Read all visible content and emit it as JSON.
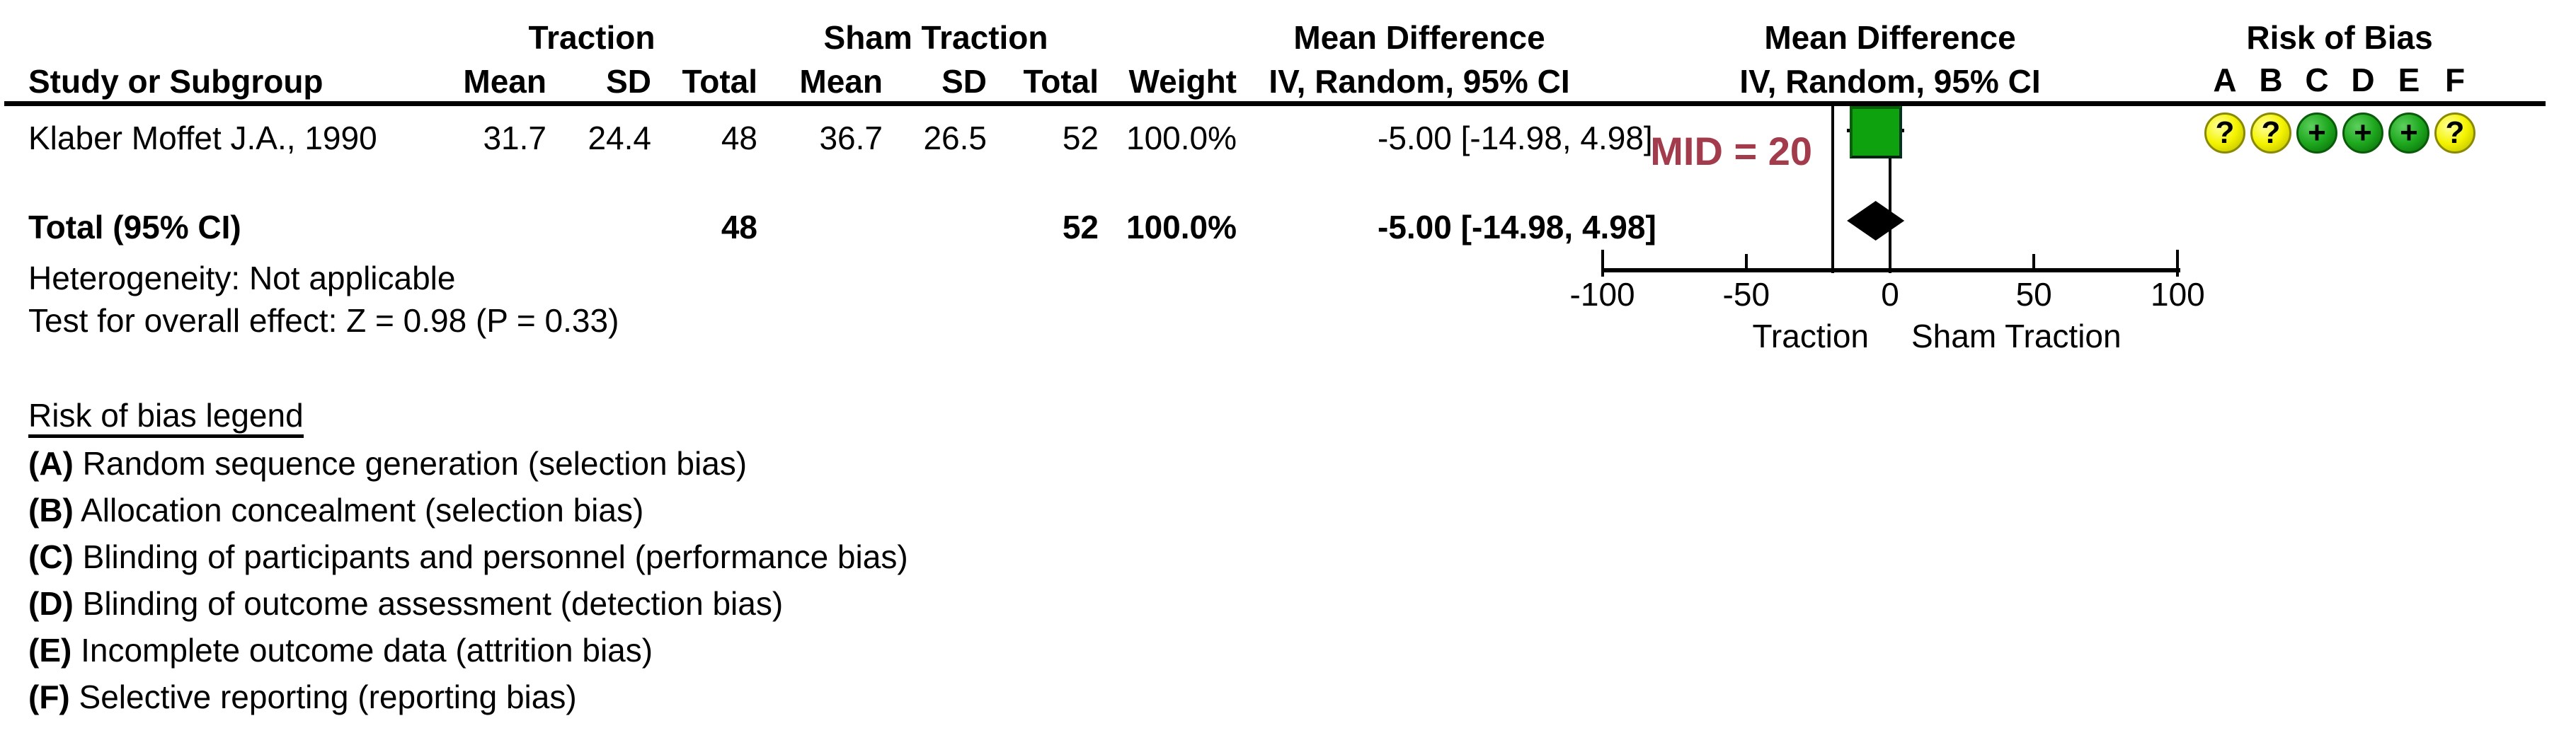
{
  "table": {
    "group_headers": {
      "traction": "Traction",
      "sham_traction": "Sham Traction",
      "mean_difference": "Mean Difference",
      "plot_title_line1": "Mean Difference",
      "plot_title_line2": "IV, Random, 95% CI",
      "risk_of_bias": "Risk of Bias"
    },
    "column_headers": {
      "study": "Study or Subgroup",
      "mean_t": "Mean",
      "sd_t": "SD",
      "total_t": "Total",
      "mean_s": "Mean",
      "sd_s": "SD",
      "total_s": "Total",
      "weight": "Weight",
      "ci": "IV, Random, 95% CI"
    },
    "rob_columns": [
      "A",
      "B",
      "C",
      "D",
      "E",
      "F"
    ],
    "study_row": {
      "study": "Klaber Moffet J.A., 1990",
      "mean_t": "31.7",
      "sd_t": "24.4",
      "total_t": "48",
      "mean_s": "36.7",
      "sd_s": "26.5",
      "total_s": "52",
      "weight": "100.0%",
      "ci_text": "-5.00 [-14.98, 4.98]",
      "risk_of_bias": [
        "unclear",
        "unclear",
        "low",
        "low",
        "low",
        "unclear"
      ]
    },
    "total_row": {
      "label": "Total (95% CI)",
      "total_t": "48",
      "total_s": "52",
      "weight": "100.0%",
      "ci_text": "-5.00 [-14.98, 4.98]"
    },
    "heterogeneity": "Heterogeneity: Not applicable",
    "overall_effect": "Test for overall effect: Z = 0.98 (P = 0.33)"
  },
  "plot": {
    "mid_annotation": "MID = 20",
    "axis_tick_labels": [
      "-100",
      "-50",
      "0",
      "50",
      "100"
    ],
    "favours_left": "Traction",
    "favours_right": "Sham Traction"
  },
  "legend": {
    "title": "Risk of bias legend",
    "items": [
      {
        "key": "A",
        "text": "Random sequence generation (selection bias)"
      },
      {
        "key": "B",
        "text": "Allocation concealment (selection bias)"
      },
      {
        "key": "C",
        "text": "Blinding of participants and personnel (performance bias)"
      },
      {
        "key": "D",
        "text": "Blinding of outcome assessment (detection bias)"
      },
      {
        "key": "E",
        "text": "Incomplete outcome data (attrition bias)"
      },
      {
        "key": "F",
        "text": "Selective reporting (reporting bias)"
      }
    ]
  },
  "colors": {
    "square_fill": "#0EA30E",
    "square_border": "#075F07",
    "mid_text": "#A23B4B",
    "rob_low": "#1EA81E",
    "rob_unclear": "#F4F400"
  },
  "chart_data": {
    "type": "forest",
    "effect_measure": "Mean Difference",
    "method": "IV, Random, 95% CI",
    "axis": {
      "min": -100,
      "max": 100,
      "ticks": [
        -100,
        -50,
        0,
        50,
        100
      ]
    },
    "mid_line": -20,
    "zero_line": 0,
    "studies": [
      {
        "name": "Klaber Moffet J.A., 1990",
        "mean_diff": -5.0,
        "ci_low": -14.98,
        "ci_high": 4.98,
        "weight_pct": 100.0
      }
    ],
    "total": {
      "mean_diff": -5.0,
      "ci_low": -14.98,
      "ci_high": 4.98
    },
    "heterogeneity": "Not applicable",
    "overall_effect_z": 0.98,
    "overall_effect_p": 0.33,
    "xlabel_left": "Traction",
    "xlabel_right": "Sham Traction"
  }
}
